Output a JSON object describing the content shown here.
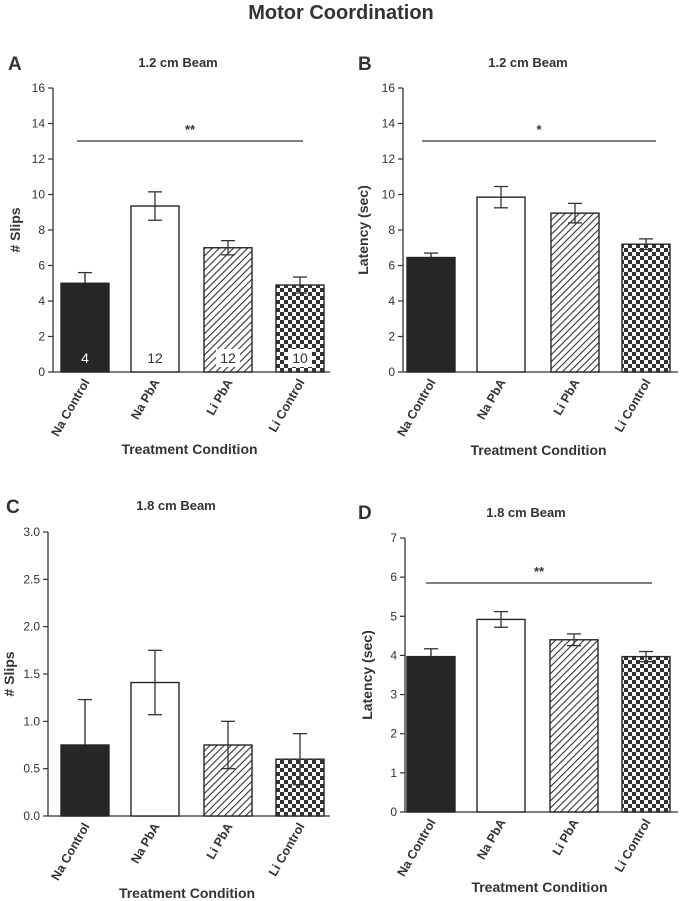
{
  "figure": {
    "title": "Motor Coordination"
  },
  "chart_data": [
    {
      "type": "bar",
      "panel": "A",
      "title": "1.2 cm Beam",
      "xlabel": "Treatment Condition",
      "ylabel": "# Slips",
      "categories": [
        "Na Control",
        "Na PbA",
        "Li PbA",
        "Li Control"
      ],
      "values": [
        5.0,
        9.35,
        7.0,
        4.9
      ],
      "errors": [
        0.6,
        0.8,
        0.4,
        0.45
      ],
      "n": [
        "4",
        "12",
        "12",
        "10"
      ],
      "ylim": [
        0,
        16
      ],
      "yticks": [
        "0",
        "2",
        "4",
        "6",
        "8",
        "10",
        "12",
        "14",
        "16"
      ],
      "significance": "**"
    },
    {
      "type": "bar",
      "panel": "B",
      "title": "1.2 cm Beam",
      "xlabel": "Treatment Condition",
      "ylabel": "Latency (sec)",
      "categories": [
        "Na Control",
        "Na PbA",
        "Li PbA",
        "Li Control"
      ],
      "values": [
        6.45,
        9.85,
        8.95,
        7.2
      ],
      "errors": [
        0.25,
        0.6,
        0.55,
        0.3
      ],
      "ylim": [
        0,
        16
      ],
      "yticks": [
        "0",
        "2",
        "4",
        "6",
        "8",
        "10",
        "12",
        "14",
        "16"
      ],
      "significance": "*"
    },
    {
      "type": "bar",
      "panel": "C",
      "title": "1.8 cm Beam",
      "xlabel": "Treatment Condition",
      "ylabel": "# Slips",
      "categories": [
        "Na Control",
        "Na PbA",
        "Li PbA",
        "Li Control"
      ],
      "values": [
        0.75,
        1.41,
        0.75,
        0.6
      ],
      "errors": [
        0.48,
        0.34,
        0.25,
        0.27
      ],
      "ylim": [
        0,
        3
      ],
      "yticks": [
        "0.0",
        "0.5",
        "1.0",
        "1.5",
        "2.0",
        "2.5",
        "3.0"
      ],
      "significance": ""
    },
    {
      "type": "bar",
      "panel": "D",
      "title": "1.8 cm Beam",
      "xlabel": "Treatment Condition",
      "ylabel": "Latency (sec)",
      "categories": [
        "Na Control",
        "Na PbA",
        "Li PbA",
        "Li Control"
      ],
      "values": [
        3.97,
        4.92,
        4.4,
        3.97
      ],
      "errors": [
        0.2,
        0.2,
        0.15,
        0.13
      ],
      "ylim": [
        0,
        7
      ],
      "yticks": [
        "0",
        "1",
        "2",
        "3",
        "4",
        "5",
        "6",
        "7"
      ],
      "significance": "**"
    }
  ],
  "colors": {
    "na_control": "#262626",
    "na_pba": "#ffffff",
    "li_pba": "#ffffff",
    "li_control": "#ffffff",
    "axis": "#333333"
  }
}
